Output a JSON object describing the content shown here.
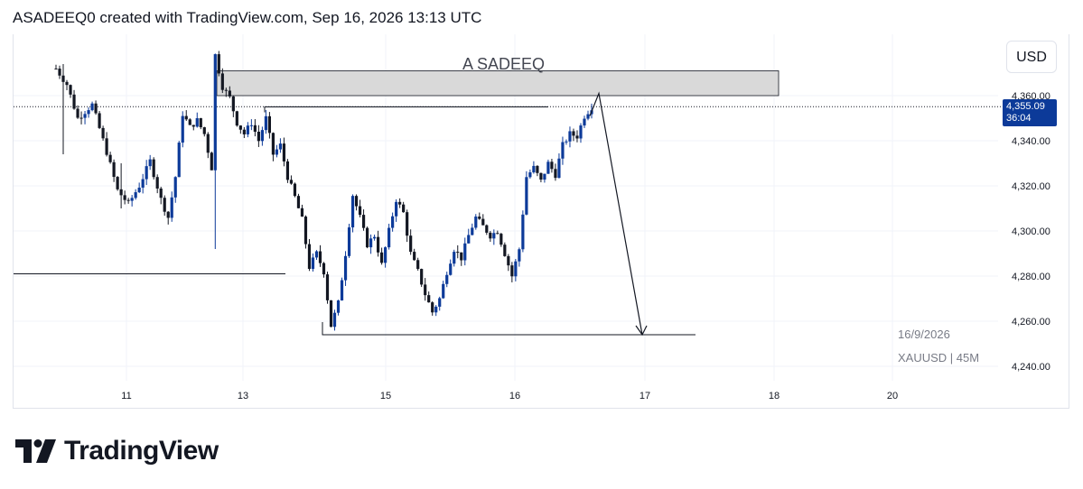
{
  "header": {
    "text": "ASADEEQ0 created with TradingView.com, Sep 16, 2026 13:13 UTC"
  },
  "currency_button": "USD",
  "price_badge": {
    "price": "4,355.09",
    "countdown": "36:04"
  },
  "drawing": {
    "label": "A SADEEQ"
  },
  "info": {
    "date": "16/9/2026",
    "symbol": "XAUUSD | 45M"
  },
  "brand": {
    "name": "TradingView"
  },
  "colors": {
    "up": "#0c3a99",
    "down": "#131722",
    "zone_fill": "#d9d9d9",
    "grid": "#f0f3fa",
    "badge": "#0c3a99"
  },
  "chart_data": {
    "type": "candlestick",
    "symbol": "XAUUSD",
    "timeframe": "45M",
    "y_ticks": [
      "4,360.00",
      "4,340.00",
      "4,320.00",
      "4,300.00",
      "4,280.00",
      "4,260.00",
      "4,240.00"
    ],
    "y_tick_values": [
      4360,
      4340,
      4320,
      4300,
      4280,
      4260,
      4240
    ],
    "x_ticks": [
      "11",
      "13",
      "15",
      "16",
      "17",
      "18",
      "20"
    ],
    "ylim": [
      4228,
      4377
    ],
    "last_price": 4355.09,
    "price_path": [
      [
        0,
        4372
      ],
      [
        3,
        4365
      ],
      [
        6,
        4350
      ],
      [
        10,
        4356
      ],
      [
        14,
        4335
      ],
      [
        17,
        4318
      ],
      [
        20,
        4312
      ],
      [
        23,
        4320
      ],
      [
        26,
        4331
      ],
      [
        29,
        4314
      ],
      [
        31,
        4306
      ],
      [
        33,
        4324
      ],
      [
        35,
        4352
      ],
      [
        37,
        4346
      ],
      [
        39,
        4349
      ],
      [
        41,
        4343
      ],
      [
        43,
        4328
      ],
      [
        44,
        4378
      ],
      [
        46,
        4364
      ],
      [
        48,
        4359
      ],
      [
        50,
        4348
      ],
      [
        52,
        4343
      ],
      [
        54,
        4348
      ],
      [
        56,
        4340
      ],
      [
        58,
        4350
      ],
      [
        60,
        4334
      ],
      [
        62,
        4338
      ],
      [
        64,
        4324
      ],
      [
        66,
        4315
      ],
      [
        68,
        4305
      ],
      [
        70,
        4284
      ],
      [
        72,
        4290
      ],
      [
        74,
        4282
      ],
      [
        76,
        4258
      ],
      [
        78,
        4268
      ],
      [
        80,
        4290
      ],
      [
        82,
        4316
      ],
      [
        84,
        4306
      ],
      [
        86,
        4294
      ],
      [
        88,
        4298
      ],
      [
        90,
        4285
      ],
      [
        92,
        4300
      ],
      [
        94,
        4314
      ],
      [
        96,
        4308
      ],
      [
        98,
        4290
      ],
      [
        100,
        4282
      ],
      [
        102,
        4272
      ],
      [
        104,
        4264
      ],
      [
        106,
        4270
      ],
      [
        108,
        4282
      ],
      [
        110,
        4292
      ],
      [
        112,
        4288
      ],
      [
        114,
        4298
      ],
      [
        116,
        4306
      ],
      [
        118,
        4302
      ],
      [
        120,
        4298
      ],
      [
        122,
        4300
      ],
      [
        124,
        4290
      ],
      [
        126,
        4280
      ],
      [
        128,
        4292
      ],
      [
        130,
        4324
      ],
      [
        132,
        4328
      ],
      [
        134,
        4322
      ],
      [
        136,
        4330
      ],
      [
        138,
        4325
      ],
      [
        140,
        4338
      ],
      [
        142,
        4343
      ],
      [
        144,
        4342
      ],
      [
        146,
        4351
      ],
      [
        148,
        4355
      ]
    ],
    "annotations": {
      "supply_zone": {
        "top": 4371,
        "bottom": 4360
      },
      "resistance_line": 4355,
      "left_support_line": 4281,
      "target_line": 4254,
      "arrow_from": 4361,
      "arrow_to": 4254
    }
  }
}
